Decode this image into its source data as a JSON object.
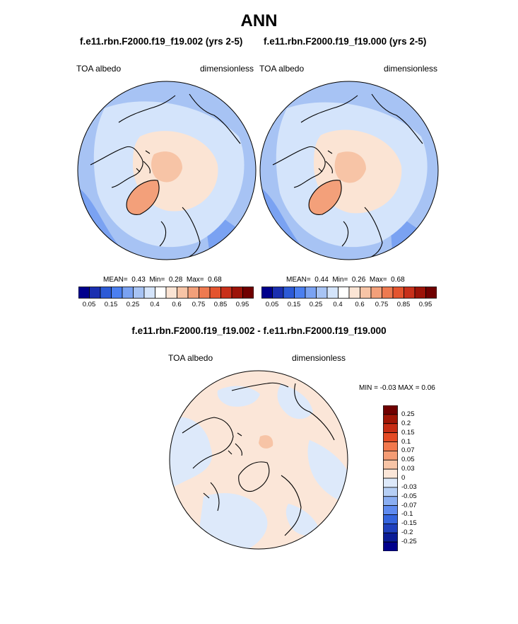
{
  "page": {
    "title": "ANN",
    "case1_title": "f.e11.rbn.F2000.f19_f19.002 (yrs 2-5)",
    "case2_title": "f.e11.rbn.F2000.f19_f19.000 (yrs 2-5)",
    "diff_title": "f.e11.rbn.F2000.f19_f19.002 - f.e11.rbn.F2000.f19_f19.000"
  },
  "panels": {
    "left": {
      "var_label": "TOA albedo",
      "units_label": "dimensionless",
      "mean_label": "MEAN=",
      "mean_value": "0.43",
      "min_label": "Min=",
      "min_value": "0.28",
      "max_label": "Max=",
      "max_value": "0.68"
    },
    "right": {
      "var_label": "TOA albedo",
      "units_label": "dimensionless",
      "mean_label": "MEAN=",
      "mean_value": "0.44",
      "min_label": "Min=",
      "min_value": "0.26",
      "max_label": "Max=",
      "max_value": "0.68"
    },
    "diff": {
      "var_label": "TOA albedo",
      "units_label": "dimensionless",
      "minmax_text": "MIN =  -0.03 MAX =   0.06"
    }
  },
  "colors": {
    "map_scale": [
      "#00008c",
      "#1a2fb0",
      "#2c5ad6",
      "#4b7ff0",
      "#7aa2f2",
      "#a7c3f4",
      "#d4e4fb",
      "#ffffff",
      "#fbe4d4",
      "#f7c4a6",
      "#f3a07a",
      "#ee7a50",
      "#e4542e",
      "#c8301a",
      "#9c1308",
      "#700000"
    ],
    "diff_scale": [
      "#700000",
      "#a01606",
      "#c62c14",
      "#e44a24",
      "#f2784c",
      "#f59c74",
      "#f7c4a6",
      "#fbe6d8",
      "#dde9fa",
      "#b6cff5",
      "#8aaef2",
      "#5f8bf0",
      "#3565de",
      "#1f40bd",
      "#0a1c96",
      "#00008c"
    ]
  },
  "chart_data": [
    {
      "type": "heatmap",
      "title": "f.e11.rbn.F2000.f19_f19.002 (yrs 2-5)",
      "variable": "TOA albedo",
      "units": "dimensionless",
      "projection": "north polar stereographic",
      "colorbar_levels": [
        "0.05",
        "0.15",
        "0.25",
        "0.4",
        "0.6",
        "0.75",
        "0.85",
        "0.95"
      ],
      "stats": {
        "mean": 0.43,
        "min": 0.28,
        "max": 0.68
      }
    },
    {
      "type": "heatmap",
      "title": "f.e11.rbn.F2000.f19_f19.000 (yrs 2-5)",
      "variable": "TOA albedo",
      "units": "dimensionless",
      "projection": "north polar stereographic",
      "colorbar_levels": [
        "0.05",
        "0.15",
        "0.25",
        "0.4",
        "0.6",
        "0.75",
        "0.85",
        "0.95"
      ],
      "stats": {
        "mean": 0.44,
        "min": 0.26,
        "max": 0.68
      }
    },
    {
      "type": "heatmap",
      "title": "f.e11.rbn.F2000.f19_f19.002 - f.e11.rbn.F2000.f19_f19.000",
      "variable": "TOA albedo",
      "units": "dimensionless",
      "projection": "north polar stereographic",
      "colorbar_levels": [
        "0.25",
        "0.2",
        "0.15",
        "0.1",
        "0.07",
        "0.05",
        "0.03",
        "0",
        "-0.03",
        "-0.05",
        "-0.07",
        "-0.1",
        "-0.15",
        "-0.2",
        "-0.25"
      ],
      "stats": {
        "min": -0.03,
        "max": 0.06
      }
    }
  ]
}
